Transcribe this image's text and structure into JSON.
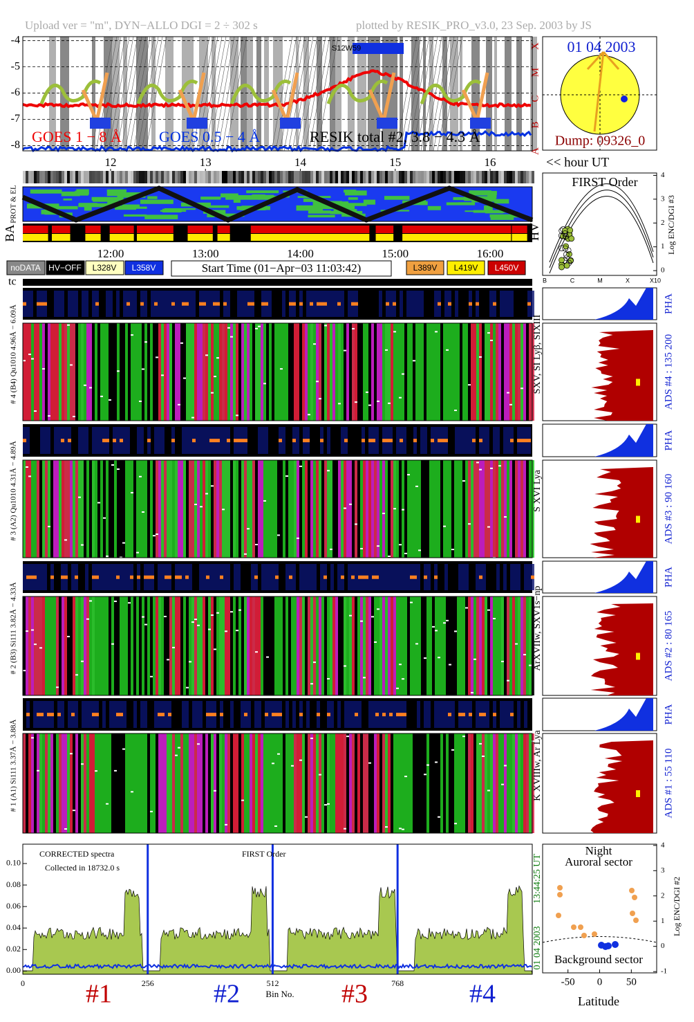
{
  "header": {
    "upload": "Upload ver = \"m\", DYN−ALLO DGI =   2 ÷ 302 s",
    "plotted": "plotted by RESIK_PRO_v3.0, 23 Sep. 2003 by JS"
  },
  "goes": {
    "yticks": [
      -4,
      -5,
      -6,
      -7,
      -8
    ],
    "ylim": [
      -8.2,
      -3.85
    ],
    "classes": [
      "X",
      "M",
      "C",
      "B",
      "A"
    ],
    "goes_long": "GOES 1 − 8 Å",
    "goes_short": "GOES 0.5 − 4 Å",
    "resik": "RESIK total #2, 3.8 − 4.3 Å",
    "region": "S12W59"
  },
  "orbit": {
    "date": "01 04 2003",
    "dump": "Dump: 09326_0"
  },
  "hours": {
    "ticks": [
      12,
      13,
      14,
      15,
      16
    ],
    "xlim": [
      11.075,
      16.444
    ],
    "label": "<< hour UT",
    "time_labels": [
      "12:00",
      "13:00",
      "14:00",
      "15:00",
      "16:00"
    ]
  },
  "side_labels": {
    "prot": "PROT & EL",
    "ba": "BA",
    "hv": "HV",
    "tc": "tc"
  },
  "legend": {
    "left": [
      "noDATA",
      "HV−OFF",
      "L328V",
      "L358V"
    ],
    "start_time": "Start Time (01−Apr−03 11:03:42)",
    "right": [
      "L389V",
      "L419V",
      "L450V"
    ]
  },
  "first_order": {
    "title": "FIRST Order",
    "ylabel": "Log ENC/DGI #3",
    "ylim": [
      -0.2,
      4.1
    ],
    "yticks": [
      0,
      1,
      2,
      3,
      4
    ],
    "xlabels": [
      "B",
      "C",
      "M",
      "X",
      "X10"
    ]
  },
  "channels": [
    {
      "label": "# 4 (B4) Qu1010 4.96Å − 6.09Å",
      "lines": "SXV, SI Lyβ, SIXIII",
      "ads": "ADS #4 :   135 200",
      "pha": "PHA"
    },
    {
      "label": "# 3 (A2) Qu1010 4.31Å − 4.89Å",
      "lines": "S XVI Lya",
      "ads": "ADS #3 :    90 160",
      "pha": "PHA"
    },
    {
      "label": "# 2 (B3) Si111 3.82Å − 4.33Å",
      "lines": "ArXVIIw, SXV1s−np",
      "ads": "ADS #2 :    80 165",
      "pha": "PHA"
    },
    {
      "label": "# 1 (A1) Si111 3.37Å − 3.88Å",
      "lines": "K XVIIIw, Ar Lya",
      "ads": "ADS #1 :    55 110",
      "pha": "PHA"
    }
  ],
  "spectrum": {
    "title": "CORRECTED spectra",
    "collected": "Collected in 18732.0 s",
    "order": "FIRST Order",
    "ylim": [
      -0.003,
      0.118
    ],
    "yticks": [
      {
        "value": 0,
        "label": "0.00"
      },
      0.02,
      0.04,
      0.06,
      0.08,
      {
        "value": 0.1,
        "label": "0.10"
      }
    ],
    "xlim": [
      0,
      1044
    ],
    "xticks": [
      0,
      256,
      512,
      768
    ],
    "xlabel": "Bin No.",
    "date": "01 04 2003",
    "time": "13:44:25 UT",
    "channel_names": [
      "#1",
      "#2",
      "#3",
      "#4"
    ]
  },
  "latitude": {
    "night": "Night",
    "auroral": "Auroral sector",
    "background": "Background sector",
    "xlabel": "Latitude",
    "xlim": [
      -90,
      90
    ],
    "xticks": [
      -50,
      0,
      50
    ],
    "ylim": [
      -1.05,
      4.05
    ],
    "yticks": [
      -1,
      0,
      1,
      2,
      3,
      4
    ],
    "ylabel": "Log ENC/DGI #2"
  }
}
